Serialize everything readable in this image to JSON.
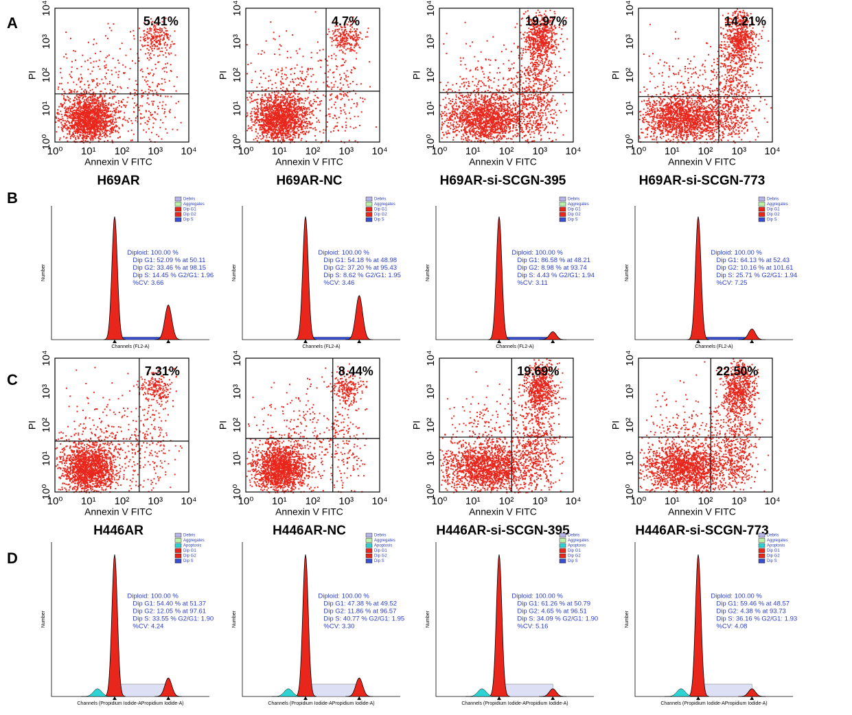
{
  "panel_letters": [
    "A",
    "B",
    "C",
    "D"
  ],
  "apoptosis_axis": {
    "x_label": "Annexin V FITC",
    "y_label": "PI",
    "ticks": [
      "10⁰",
      "10¹",
      "10²",
      "10³",
      "10⁴"
    ]
  },
  "apoptosis_rows": [
    {
      "plots": [
        {
          "title": "H69AR",
          "percent": "5.41%"
        },
        {
          "title": "H69AR-NC",
          "percent": "4.7%"
        },
        {
          "title": "H69AR-si-SCGN-395",
          "percent": "19.97%"
        },
        {
          "title": "H69AR-si-SCGN-773",
          "percent": "14.21%"
        }
      ]
    },
    {
      "plots": [
        {
          "title": "H446AR",
          "percent": "7.31%"
        },
        {
          "title": "H446AR-NC",
          "percent": "8.44%"
        },
        {
          "title": "H446AR-si-SCGN-395",
          "percent": "19.69%"
        },
        {
          "title": "H446AR-si-SCGN-773",
          "percent": "22.50%"
        }
      ]
    }
  ],
  "cycle_rows": [
    {
      "x_label": "Channels (FL2-A)",
      "y_label": "Number",
      "legend": [
        "Debris",
        "Aggregates",
        "Dip G1",
        "Dip G2",
        "Dip S"
      ],
      "plots": [
        {
          "stats": [
            "Diploid: 100.00 %",
            "Dip G1: 52.09 % at 50.11",
            "Dip G2: 33.46 % at 98.15",
            "Dip S: 14.45 %   G2/G1: 1.96",
            "%CV: 3.66"
          ]
        },
        {
          "stats": [
            "Diploid: 100.00 %",
            "Dip G1: 54.18 % at 48.98",
            "Dip G2: 37.20 % at 95.43",
            "Dip S: 8.62 %   G2/G1: 1.95",
            "%CV: 3.46"
          ]
        },
        {
          "stats": [
            "Diploid: 100.00 %",
            "Dip G1: 86.58 % at 48.21",
            "Dip G2: 8.98 % at 93.74",
            "Dip S: 4.43 %   G2/G1: 1.94",
            "%CV: 3.11"
          ]
        },
        {
          "stats": [
            "Diploid: 100.00 %",
            "Dip G1: 64.13 % at 52.43",
            "Dip G2: 10.16 % at 101.61",
            "Dip S: 25.71 %   G2/G1: 1.94",
            "%CV: 7.25"
          ]
        }
      ]
    },
    {
      "x_label": "Channels (Propidium Iodide-APropidium Iodide-A)",
      "y_label": "Number",
      "legend": [
        "Debris",
        "Aggregates",
        "Apoptosis",
        "Dip G1",
        "Dip G2",
        "Dip S"
      ],
      "plots": [
        {
          "stats": [
            "Diploid: 100.00 %",
            "Dip G1: 54.40 % at 51.37",
            "Dip G2: 12.05 % at 97.61",
            "Dip S: 33.55 %   G2/G1: 1.90",
            "%CV: 4.24"
          ]
        },
        {
          "stats": [
            "Diploid: 100.00 %",
            "Dip G1: 47.38 % at 49.52",
            "Dip G2: 11.86 % at 96.57",
            "Dip S: 40.77 %   G2/G1: 1.95",
            "%CV: 3.30"
          ]
        },
        {
          "stats": [
            "Diploid: 100.00 %",
            "Dip G1: 61.26 % at 50.79",
            "Dip G2: 4.65 % at 96.51",
            "Dip S: 34.09 %   G2/G1: 1.90",
            "%CV: 5.16"
          ]
        },
        {
          "stats": [
            "Diploid: 100.00 %",
            "Dip G1: 59.46 % at 48.57",
            "Dip G2: 4.38 % at 93.73",
            "Dip S: 36.16 %   G2/G1: 1.93",
            "%CV: 4.08"
          ]
        }
      ]
    }
  ]
}
